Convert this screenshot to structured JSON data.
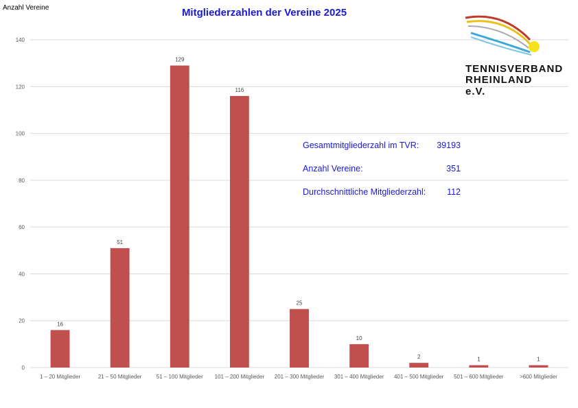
{
  "chart_data": {
    "type": "bar",
    "title": "Mitgliederzahlen der Vereine 2025",
    "ylabel": "Anzahl Vereine",
    "xlabel": "",
    "ylim": [
      0,
      140
    ],
    "yticks": [
      0,
      20,
      40,
      60,
      80,
      100,
      120,
      140
    ],
    "categories": [
      "1 – 20 Mitglieder",
      "21 – 50 Mitglieder",
      "51 – 100 Mitglieder",
      "101 – 200 Mitglieder",
      "201 – 300 Mitglieder",
      "301 – 400 Mitglieder",
      "401 – 500 Mitglieder",
      "501 – 600 Mitglieder",
      ">600 Mitglieder"
    ],
    "values": [
      16,
      51,
      129,
      116,
      25,
      10,
      2,
      1,
      1
    ],
    "bar_color": "#c0504d",
    "grid": true,
    "legend": "none"
  },
  "stats": [
    {
      "label": "Gesamtmitgliederzahl im TVR:",
      "value": "39193"
    },
    {
      "label": "Anzahl Vereine:",
      "value": "351"
    },
    {
      "label": "Durchschnittliche Mitgliederzahl:",
      "value": "112"
    }
  ],
  "logo": {
    "line1": "TENNISVERBAND",
    "line2": "RHEINLAND e.V."
  },
  "colors": {
    "title": "#1a1ad6",
    "stats": "#1a1ad6",
    "gridline": "#d9d9d9"
  }
}
